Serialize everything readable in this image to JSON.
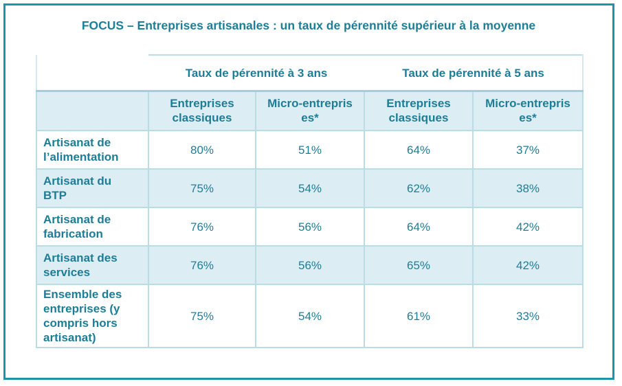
{
  "title": "FOCUS – Entreprises artisanales : un taux de pérennité supérieur à la moyenne",
  "groups": {
    "three_years": "Taux de pérennité à 3 ans",
    "five_years": "Taux de pérennité à 5 ans"
  },
  "subheaders": {
    "classic": [
      "Entreprises",
      "classiques"
    ],
    "micro": [
      "Micro-entrepris",
      "es*"
    ]
  },
  "rows": [
    {
      "label": [
        "Artisanat de",
        "l’alimentation"
      ],
      "values": [
        "80%",
        "51%",
        "64%",
        "37%"
      ]
    },
    {
      "label": [
        "Artisanat du",
        "BTP"
      ],
      "values": [
        "75%",
        "54%",
        "62%",
        "38%"
      ]
    },
    {
      "label": [
        "Artisanat de",
        "fabrication"
      ],
      "values": [
        "76%",
        "56%",
        "64%",
        "42%"
      ]
    },
    {
      "label": [
        "Artisanat des",
        "services"
      ],
      "values": [
        "76%",
        "56%",
        "65%",
        "42%"
      ]
    },
    {
      "label": [
        "Ensemble des",
        "entreprises (y",
        "compris hors",
        "artisanat)"
      ],
      "values": [
        "75%",
        "54%",
        "61%",
        "33%"
      ]
    }
  ]
}
